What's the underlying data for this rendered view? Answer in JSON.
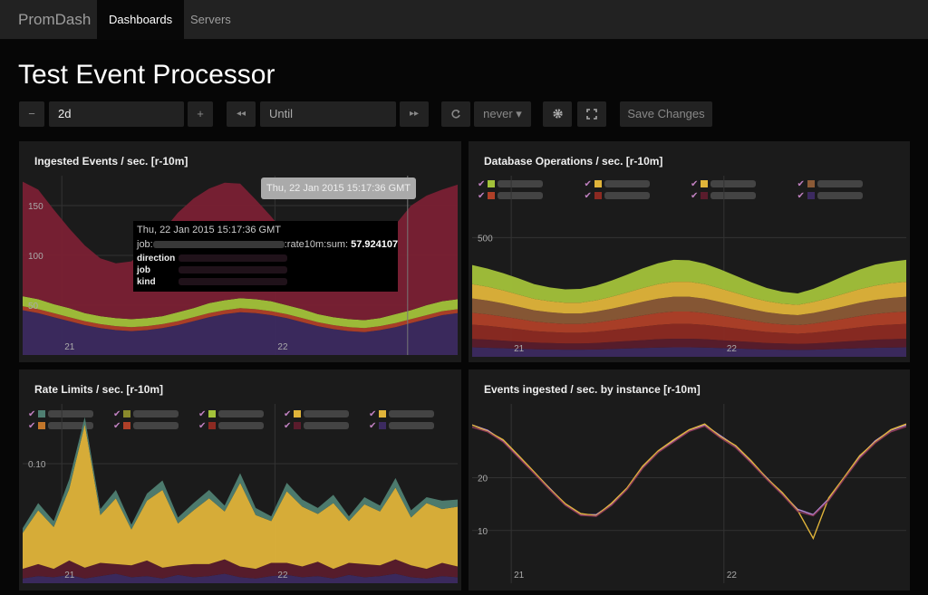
{
  "navbar": {
    "brand": "PromDash",
    "items": [
      "Dashboards",
      "Servers"
    ]
  },
  "page": {
    "title": "Test Event Processor"
  },
  "toolbar": {
    "minus": "−",
    "range": "2d",
    "plus": "+",
    "back": "◂◂",
    "until_placeholder": "Until",
    "forward": "▸▸",
    "refresh_label": "never ▾",
    "save": "Save Changes"
  },
  "colors": {
    "purple": "#3c2a60",
    "red": "#7a2034",
    "green": "#a3c23a",
    "yellow": "#e0b43a",
    "olive": "#8a8a2c",
    "orange": "#c2762a",
    "brown": "#8b5a36",
    "darkred": "#8c2a22",
    "maroon": "#5a1c2c",
    "teal": "#4f7f72"
  },
  "panels": [
    {
      "title": "Ingested Events / sec. [r-10m]",
      "chart_data": {
        "type": "area",
        "ytick_labels": [
          "50",
          "100",
          "150"
        ],
        "xtick_labels": [
          "21",
          "22"
        ],
        "series": [
          {
            "color": "#3c2a60",
            "values": [
              45,
              42,
              38,
              34,
              30,
              27,
              25,
              24,
              25,
              27,
              30,
              34,
              38,
              41,
              43,
              42,
              40,
              37,
              33,
              29,
              26,
              24,
              23,
              25,
              28,
              32,
              36,
              40,
              42
            ]
          },
          {
            "color": "#b04028",
            "values": [
              4,
              4,
              4,
              4,
              4,
              4,
              4,
              4,
              4,
              4,
              4,
              4,
              4,
              4,
              4,
              4,
              4,
              4,
              4,
              4,
              4,
              4,
              4,
              4,
              4,
              4,
              4,
              4,
              4
            ]
          },
          {
            "color": "#a3c23a",
            "values": [
              10,
              10,
              9,
              9,
              8,
              8,
              8,
              8,
              8,
              8,
              9,
              9,
              10,
              10,
              10,
              10,
              10,
              9,
              9,
              8,
              8,
              8,
              8,
              8,
              9,
              9,
              10,
              10,
              10
            ]
          },
          {
            "color": "#7a2034",
            "values": [
              115,
              110,
              95,
              80,
              68,
              58,
              55,
              58,
              70,
              85,
              100,
              110,
              115,
              118,
              115,
              100,
              85,
              70,
              58,
              50,
              45,
              46,
              52,
              70,
              90,
              105,
              110,
              112,
              115
            ]
          }
        ]
      },
      "tooltip_time": "Thu, 22 Jan 2015 15:17:36 GMT",
      "hover_box": {
        "time": "Thu, 22 Jan 2015 15:17:36 GMT",
        "job_prefix": "job:",
        "metric_suffix": ":rate10m:sum:",
        "value": "57.924107",
        "labels": [
          "direction",
          "job",
          "kind"
        ]
      }
    },
    {
      "title": "Database Operations / sec. [r-10m]",
      "chart_data": {
        "type": "area",
        "ytick_labels": [
          "500"
        ],
        "xtick_labels": [
          "21",
          "22"
        ],
        "series": [
          {
            "color": "#3c2a60",
            "values": [
              40,
              38,
              36,
              34,
              32,
              31,
              30,
              30,
              31,
              33,
              35,
              37,
              39,
              40,
              40,
              39,
              37,
              35,
              33,
              31,
              30,
              29,
              30,
              32,
              34,
              36,
              38,
              39,
              40
            ]
          },
          {
            "color": "#5a1c2c",
            "values": [
              35,
              34,
              32,
              30,
              28,
              27,
              26,
              26,
              27,
              29,
              31,
              33,
              35,
              36,
              36,
              35,
              33,
              31,
              29,
              27,
              26,
              25,
              26,
              28,
              30,
              32,
              34,
              35,
              36
            ]
          },
          {
            "color": "#8c2a22",
            "values": [
              60,
              58,
              55,
              52,
              48,
              46,
              45,
              45,
              47,
              50,
              53,
              57,
              60,
              62,
              62,
              60,
              57,
              53,
              49,
              46,
              44,
              43,
              45,
              48,
              52,
              56,
              59,
              61,
              62
            ]
          },
          {
            "color": "#b04028",
            "values": [
              50,
              48,
              46,
              43,
              40,
              38,
              37,
              37,
              39,
              41,
              44,
              47,
              50,
              52,
              52,
              50,
              47,
              44,
              41,
              38,
              36,
              36,
              38,
              41,
              44,
              47,
              49,
              51,
              52
            ]
          },
          {
            "color": "#8b5a36",
            "values": [
              60,
              58,
              55,
              51,
              47,
              45,
              44,
              44,
              46,
              49,
              53,
              57,
              60,
              62,
              62,
              60,
              56,
              52,
              48,
              45,
              43,
              42,
              45,
              48,
              52,
              56,
              59,
              61,
              62
            ]
          },
          {
            "color": "#e0b43a",
            "values": [
              60,
              58,
              55,
              51,
              48,
              46,
              45,
              45,
              47,
              50,
              54,
              58,
              61,
              63,
              63,
              61,
              57,
              53,
              49,
              46,
              44,
              43,
              46,
              49,
              53,
              57,
              60,
              62,
              63
            ]
          },
          {
            "color": "#a3c23a",
            "values": [
              80,
              76,
              72,
              68,
              62,
              58,
              56,
              58,
              62,
              68,
              75,
              82,
              88,
              92,
              90,
              86,
              80,
              72,
              64,
              56,
              50,
              48,
              55,
              65,
              75,
              82,
              88,
              90,
              92
            ]
          }
        ],
        "legend": [
          {
            "color": "#a3c23a"
          },
          {
            "color": "#e0b43a"
          },
          {
            "color": "#e0b43a"
          },
          {
            "color": "#8b5a36"
          },
          {
            "color": "#b04028"
          },
          {
            "color": "#8c2a22"
          },
          {
            "color": "#5a1c2c"
          },
          {
            "color": "#3c2a60"
          }
        ]
      }
    },
    {
      "title": "Rate Limits / sec. [r-10m]",
      "chart_data": {
        "type": "area",
        "ytick_labels": [
          "0.10"
        ],
        "xtick_labels": [
          "21",
          "22"
        ],
        "series": [
          {
            "color": "#3c2a60",
            "values": [
              0.004,
              0.006,
              0.005,
              0.007,
              0.004,
              0.006,
              0.008,
              0.005,
              0.006,
              0.004,
              0.007,
              0.005,
              0.006,
              0.008,
              0.005,
              0.004,
              0.006,
              0.007,
              0.005,
              0.006,
              0.004,
              0.007,
              0.005,
              0.006,
              0.008,
              0.005,
              0.004,
              0.006,
              0.005
            ]
          },
          {
            "color": "#5a1c2c",
            "values": [
              0.008,
              0.01,
              0.007,
              0.012,
              0.009,
              0.011,
              0.008,
              0.01,
              0.013,
              0.009,
              0.008,
              0.011,
              0.01,
              0.012,
              0.009,
              0.008,
              0.011,
              0.01,
              0.009,
              0.012,
              0.008,
              0.01,
              0.011,
              0.009,
              0.012,
              0.01,
              0.008,
              0.011,
              0.009
            ]
          },
          {
            "color": "#e0b43a",
            "values": [
              0.03,
              0.045,
              0.035,
              0.06,
              0.12,
              0.04,
              0.055,
              0.03,
              0.05,
              0.065,
              0.035,
              0.045,
              0.055,
              0.04,
              0.07,
              0.045,
              0.035,
              0.06,
              0.05,
              0.04,
              0.055,
              0.035,
              0.05,
              0.045,
              0.06,
              0.04,
              0.055,
              0.045,
              0.05
            ]
          },
          {
            "color": "#4f7f72",
            "values": [
              0.004,
              0.006,
              0.005,
              0.008,
              0.006,
              0.005,
              0.007,
              0.004,
              0.006,
              0.008,
              0.005,
              0.006,
              0.007,
              0.005,
              0.008,
              0.006,
              0.004,
              0.007,
              0.006,
              0.005,
              0.007,
              0.004,
              0.006,
              0.005,
              0.008,
              0.006,
              0.005,
              0.007,
              0.006
            ]
          }
        ],
        "legend": [
          {
            "color": "#4f7f72"
          },
          {
            "color": "#8a8a2c"
          },
          {
            "color": "#a3c23a"
          },
          {
            "color": "#e0b43a"
          },
          {
            "color": "#e0b43a"
          },
          {
            "color": "#c2762a"
          },
          {
            "color": "#b04028"
          },
          {
            "color": "#8c2a22"
          },
          {
            "color": "#5a1c2c"
          },
          {
            "color": "#3c2a60"
          }
        ]
      }
    },
    {
      "title": "Events ingested / sec. by instance [r-10m]",
      "chart_data": {
        "type": "line",
        "ytick_labels": [
          "10",
          "20"
        ],
        "xtick_labels": [
          "21",
          "22"
        ],
        "series": [
          {
            "color": "#b38ad8",
            "values": [
              30,
              29,
              27,
              24,
              21,
              18,
              15,
              13,
              13,
              15,
              18,
              22,
              25,
              27,
              29,
              30,
              28,
              26,
              23,
              20,
              17,
              14,
              13,
              16,
              20,
              24,
              27,
              29,
              30
            ]
          },
          {
            "color": "#e0b43a",
            "values": [
              30,
              28.8,
              27.2,
              24.2,
              21.1,
              17.9,
              15.1,
              13.2,
              12.8,
              15.2,
              18.1,
              22.2,
              25.1,
              27.2,
              29.1,
              30.2,
              27.8,
              26.1,
              23.2,
              19.9,
              17.2,
              13.8,
              8.5,
              16.2,
              20.1,
              24.2,
              26.8,
              29.1,
              30.2
            ]
          },
          {
            "color": "#8c3a5a",
            "values": [
              29.6,
              28.7,
              26.8,
              23.8,
              20.8,
              17.7,
              14.8,
              12.9,
              12.7,
              14.8,
              17.8,
              21.8,
              24.8,
              26.8,
              28.8,
              29.8,
              27.6,
              25.7,
              22.8,
              19.7,
              16.8,
              13.6,
              12.8,
              15.7,
              19.8,
              23.7,
              26.6,
              28.7,
              29.7
            ]
          }
        ]
      }
    }
  ]
}
